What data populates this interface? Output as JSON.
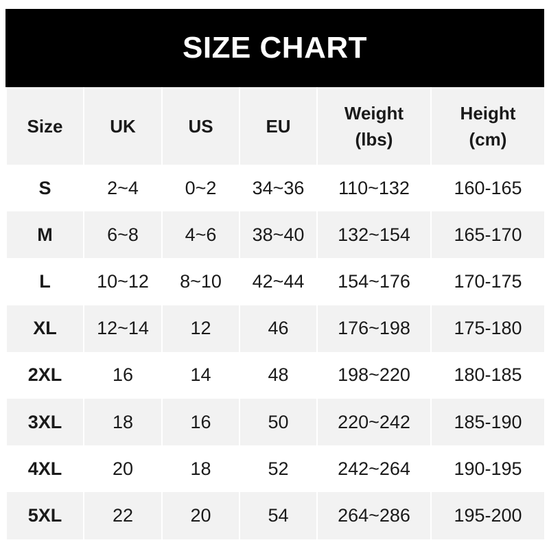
{
  "title": "SIZE CHART",
  "headers": [
    {
      "line1": "Size",
      "line2": ""
    },
    {
      "line1": "UK",
      "line2": ""
    },
    {
      "line1": "US",
      "line2": ""
    },
    {
      "line1": "EU",
      "line2": ""
    },
    {
      "line1": "Weight",
      "line2": "(lbs)"
    },
    {
      "line1": "Height",
      "line2": "(cm)"
    }
  ],
  "rows": [
    [
      "S",
      "2~4",
      "0~2",
      "34~36",
      "110~132",
      "160-165"
    ],
    [
      "M",
      "6~8",
      "4~6",
      "38~40",
      "132~154",
      "165-170"
    ],
    [
      "L",
      "10~12",
      "8~10",
      "42~44",
      "154~176",
      "170-175"
    ],
    [
      "XL",
      "12~14",
      "12",
      "46",
      "176~198",
      "175-180"
    ],
    [
      "2XL",
      "16",
      "14",
      "48",
      "198~220",
      "180-185"
    ],
    [
      "3XL",
      "18",
      "16",
      "50",
      "220~242",
      "185-190"
    ],
    [
      "4XL",
      "20",
      "18",
      "52",
      "242~264",
      "190-195"
    ],
    [
      "5XL",
      "22",
      "20",
      "54",
      "264~286",
      "195-200"
    ]
  ],
  "colors": {
    "header_bg": "#000000",
    "title_text": "#ffffff",
    "stripe": "#f2f2f2"
  }
}
